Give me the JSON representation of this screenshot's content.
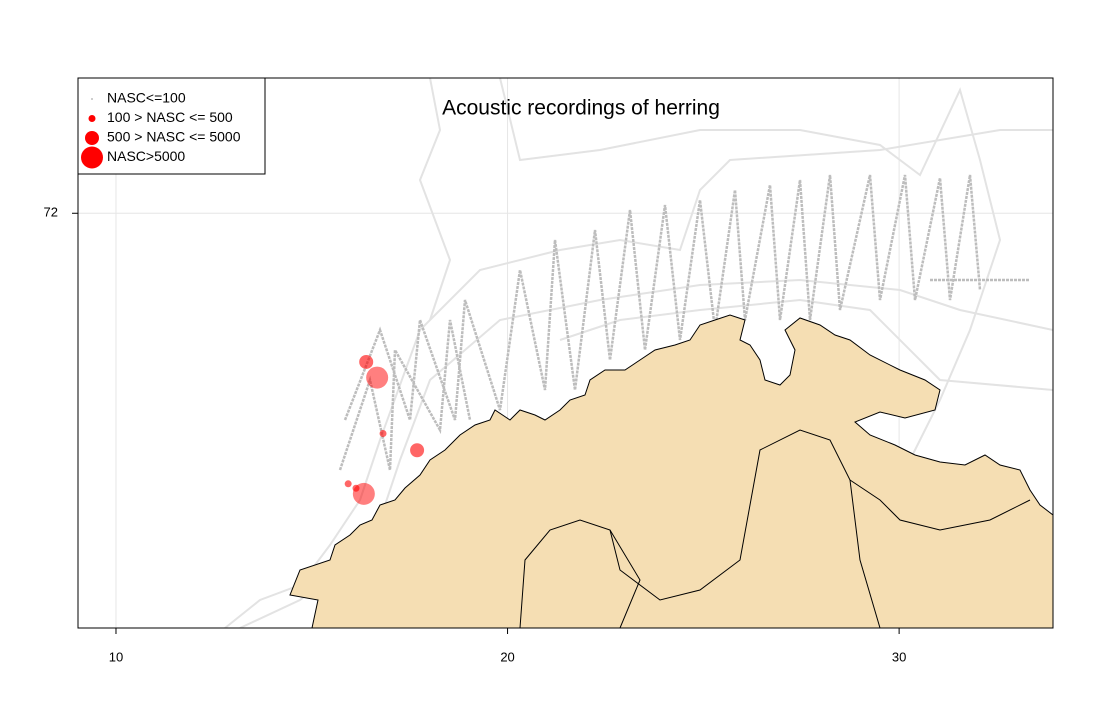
{
  "chart_data": {
    "type": "scatter",
    "title": "Acoustic recordings of herring",
    "xlim": [
      9.03,
      33.93
    ],
    "ylim": [
      68.29,
      73.21
    ],
    "xticks": [
      10,
      20,
      30
    ],
    "yticks": [
      72
    ],
    "grid": true,
    "legend": "top-left",
    "series": [
      {
        "name": "NASC<=100",
        "color": "#bebebe",
        "x": [],
        "y": []
      },
      {
        "name": "100 > NASC <= 500",
        "color": "#ff0000",
        "x": [
          16.82,
          15.93,
          16.13
        ],
        "y": [
          70.03,
          69.58,
          69.54
        ]
      },
      {
        "name": "500 > NASC <= 5000",
        "color": "#ff0000",
        "x": [
          16.39,
          17.69
        ],
        "y": [
          70.67,
          69.88
        ]
      },
      {
        "name": "NASC>5000",
        "color": "#ff0000",
        "x": [
          16.67,
          16.33
        ],
        "y": [
          70.53,
          69.49
        ]
      }
    ]
  }
}
